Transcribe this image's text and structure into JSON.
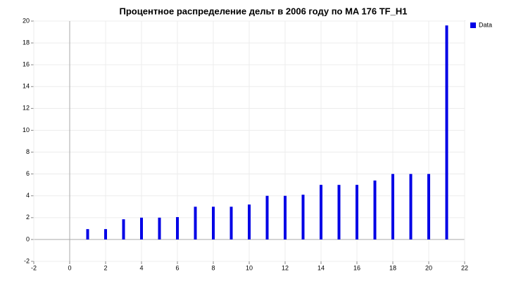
{
  "chart_data": {
    "type": "bar",
    "title": "Процентное распределение дельт в 2006 году по MA 176 TF_H1",
    "x": [
      1,
      2,
      3,
      4,
      5,
      6,
      7,
      8,
      9,
      10,
      11,
      12,
      13,
      14,
      15,
      16,
      17,
      18,
      19,
      20,
      21
    ],
    "series": [
      {
        "name": "Data",
        "color": "#0000e6",
        "values": [
          0.95,
          0.95,
          1.85,
          2.0,
          2.0,
          2.05,
          3.0,
          3.0,
          3.0,
          3.2,
          4.0,
          4.0,
          4.1,
          5.0,
          5.0,
          5.0,
          5.4,
          6.0,
          6.0,
          6.0,
          19.6
        ]
      }
    ],
    "xlim": [
      -2,
      22
    ],
    "xticks": [
      -2,
      0,
      2,
      4,
      6,
      8,
      10,
      12,
      14,
      16,
      18,
      20,
      22
    ],
    "ylim": [
      -2,
      20
    ],
    "yticks": [
      -2,
      0,
      2,
      4,
      6,
      8,
      10,
      12,
      14,
      16,
      18,
      20
    ],
    "grid": true,
    "legend": "right"
  }
}
